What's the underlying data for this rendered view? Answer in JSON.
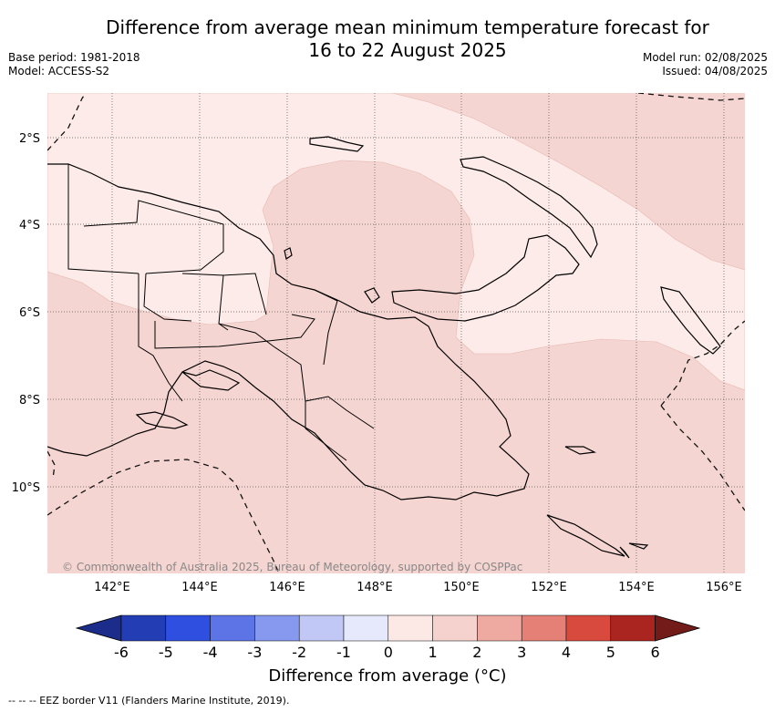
{
  "title_line1": "Difference from average mean minimum temperature forecast for",
  "title_line2": "16 to 22 August 2025",
  "base_period": "Base period: 1981-2018",
  "model": "Model: ACCESS-S2",
  "model_run": "Model run: 02/08/2025",
  "issued": "Issued: 04/08/2025",
  "lat_labels": [
    "2°S",
    "4°S",
    "6°S",
    "8°S",
    "10°S"
  ],
  "lon_labels": [
    "142°E",
    "144°E",
    "146°E",
    "148°E",
    "150°E",
    "152°E",
    "154°E",
    "156°E"
  ],
  "copyright": "© Commonwealth of Australia 2025, Bureau of Meteorology, supported by COSPPac",
  "colorbar": {
    "ticks": [
      "-6",
      "-5",
      "-4",
      "-3",
      "-2",
      "-1",
      "0",
      "1",
      "2",
      "3",
      "4",
      "5",
      "6"
    ],
    "colors": [
      "#1c2c8a",
      "#233eb4",
      "#2f4fe0",
      "#5c74e6",
      "#8799ee",
      "#c1c8f5",
      "#e6e9fb",
      "#fce9e6",
      "#f5d2ce",
      "#eea9a1",
      "#e48076",
      "#d94a3e",
      "#aa2420",
      "#721b18"
    ],
    "label": "Difference from average (°C)"
  },
  "legend_eez": "-- -- -- EEZ border V11 (Flanders Marine Institute, 2019).",
  "colors": {
    "zone_1_2": "#f5d5d1",
    "zone_0_1": "#fcebe8"
  }
}
